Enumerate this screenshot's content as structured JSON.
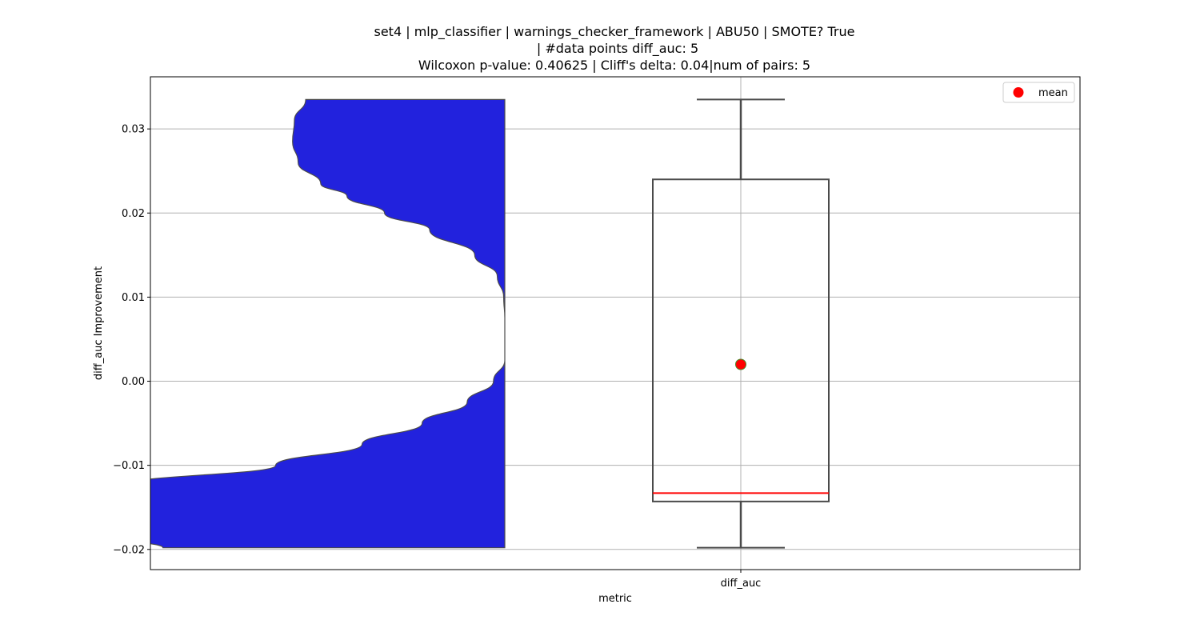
{
  "chart_data": {
    "type": "violin+box",
    "title_lines": [
      "set4 | mlp_classifier | warnings_checker_framework | ABU50 | SMOTE? True",
      "| #data points diff_auc: 5",
      "Wilcoxon p-value: 0.40625 | Cliff's delta: 0.04|num of pairs: 5"
    ],
    "xlabel": "metric",
    "ylabel": "diff_auc Improvement",
    "categories": [
      "diff_auc"
    ],
    "ylim": [
      -0.0224,
      0.0362
    ],
    "yticks": [
      -0.02,
      -0.01,
      0.0,
      0.01,
      0.02,
      0.03
    ],
    "ytick_labels": [
      "−0.02",
      "−0.01",
      "0.00",
      "0.01",
      "0.02",
      "0.03"
    ],
    "grid": true,
    "legend": {
      "location": "top-right",
      "entries": [
        "mean"
      ]
    },
    "colors": {
      "violin": "#2222dd",
      "median": "#ff0000",
      "mean": "#ff0000",
      "box_edge": "#4a4a4a",
      "grid": "#b0b0b0"
    },
    "box": {
      "whisker_low": -0.0198,
      "q1": -0.0143,
      "median": -0.0133,
      "q3": 0.024,
      "whisker_high": 0.0335,
      "mean": 0.002
    },
    "violin_profile": [
      [
        0.0335,
        0.53
      ],
      [
        0.031,
        0.56
      ],
      [
        0.0285,
        0.565
      ],
      [
        0.026,
        0.55
      ],
      [
        0.0235,
        0.49
      ],
      [
        0.022,
        0.42
      ],
      [
        0.02,
        0.32
      ],
      [
        0.018,
        0.2
      ],
      [
        0.015,
        0.08
      ],
      [
        0.0125,
        0.02
      ],
      [
        0.01,
        0.003
      ],
      [
        0.0075,
        0.0
      ],
      [
        0.005,
        0.0
      ],
      [
        0.0025,
        0.0
      ],
      [
        0.0,
        0.03
      ],
      [
        -0.0025,
        0.1
      ],
      [
        -0.005,
        0.22
      ],
      [
        -0.0075,
        0.38
      ],
      [
        -0.01,
        0.61
      ],
      [
        -0.0123,
        1.0
      ],
      [
        -0.015,
        1.0
      ],
      [
        -0.0175,
        1.0
      ],
      [
        -0.0187,
        1.0
      ],
      [
        -0.0198,
        0.91
      ]
    ]
  }
}
